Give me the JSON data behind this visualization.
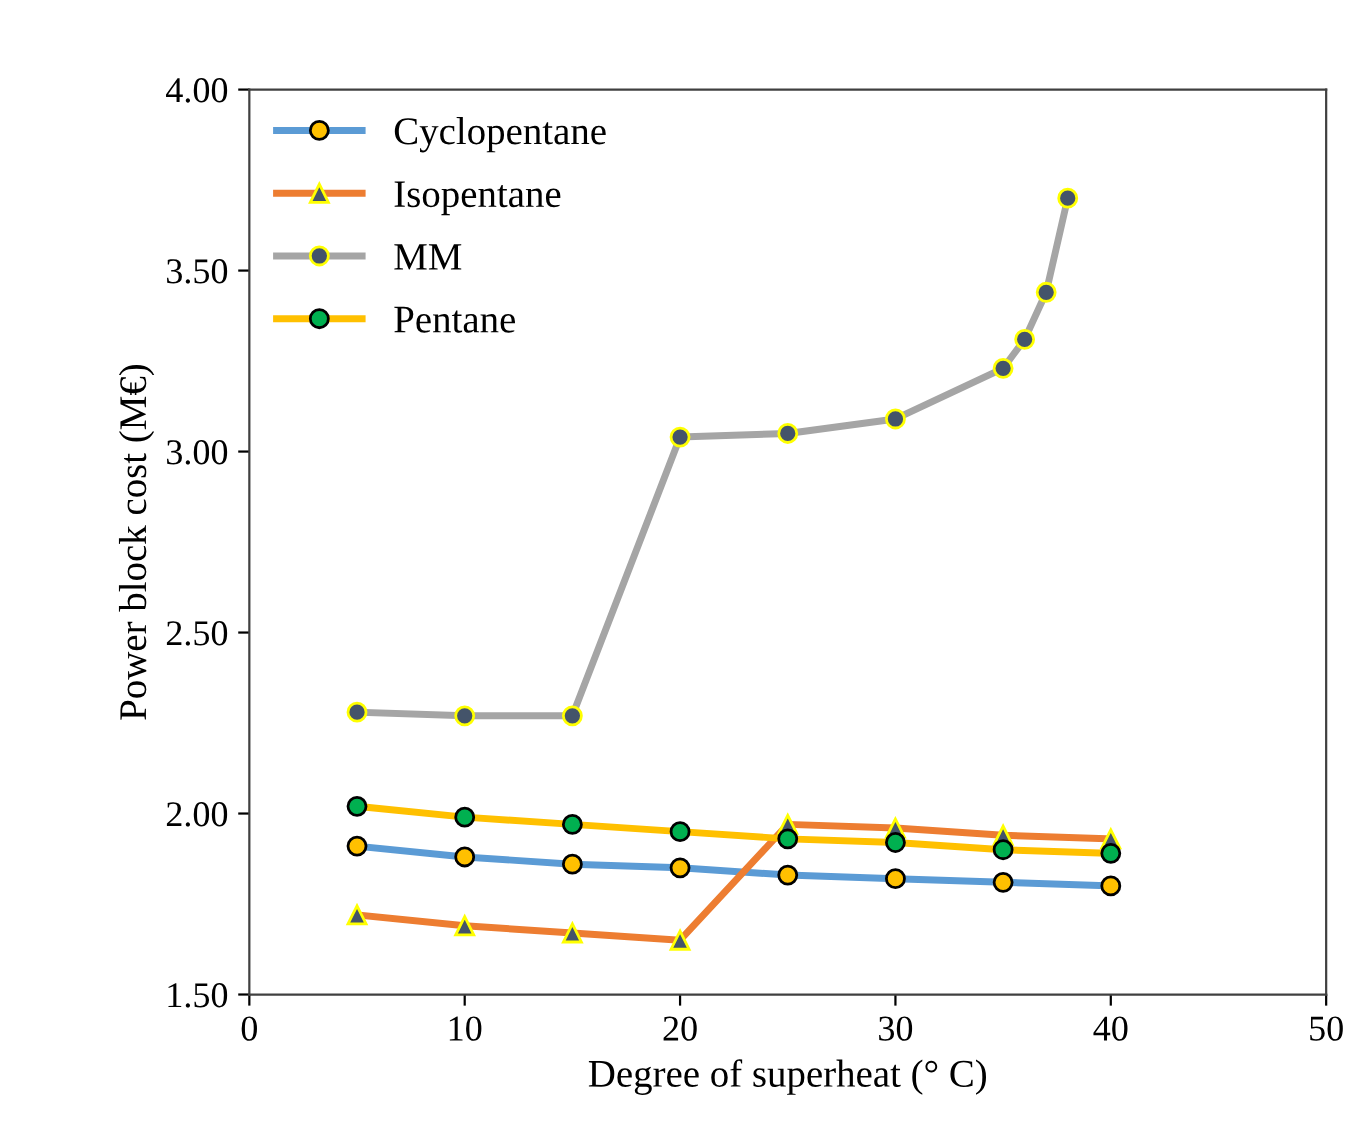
{
  "chart_data": {
    "type": "line",
    "xlabel": "Degree of superheat (° C)",
    "ylabel": "Power block cost (M€)",
    "xlim": [
      0,
      50
    ],
    "xticks": [
      0,
      10,
      20,
      30,
      40,
      50
    ],
    "ylim": [
      1.5,
      4.0
    ],
    "yticks": [
      {
        "value": 1.5,
        "label": "1.50"
      },
      {
        "value": 2.0,
        "label": "2.00"
      },
      {
        "value": 2.5,
        "label": "2.50"
      },
      {
        "value": 3.0,
        "label": "3.00"
      },
      {
        "value": 3.5,
        "label": "3.50"
      },
      {
        "value": 4.0,
        "label": "4.00"
      }
    ],
    "grid": false,
    "legend": "top left",
    "line_style": "solid",
    "series": [
      {
        "name": "Cyclopentane",
        "color": "#5b9bd5",
        "marker": "circle",
        "x": [
          5,
          10,
          15,
          20,
          25,
          30,
          35,
          40
        ],
        "values": [
          1.91,
          1.88,
          1.86,
          1.85,
          1.83,
          1.82,
          1.81,
          1.8
        ]
      },
      {
        "name": "Isopentane",
        "color": "#ed7d31",
        "marker": "triangle",
        "x": [
          5,
          10,
          15,
          20,
          25,
          30,
          35,
          40
        ],
        "values": [
          1.72,
          1.69,
          1.67,
          1.65,
          1.97,
          1.96,
          1.94,
          1.93
        ]
      },
      {
        "name": "MM",
        "color": "#a5a5a5",
        "marker": "circle",
        "x": [
          5,
          10,
          15,
          20,
          25,
          30,
          35,
          36,
          37,
          38
        ],
        "values": [
          2.28,
          2.27,
          2.27,
          3.04,
          3.05,
          3.09,
          3.23,
          3.31,
          3.44,
          3.7
        ]
      },
      {
        "name": "Pentane",
        "color": "#ffc000",
        "marker": "circle",
        "x": [
          5,
          10,
          15,
          20,
          25,
          30,
          35,
          40
        ],
        "values": [
          2.02,
          1.99,
          1.97,
          1.95,
          1.93,
          1.92,
          1.9,
          1.89
        ]
      }
    ]
  }
}
